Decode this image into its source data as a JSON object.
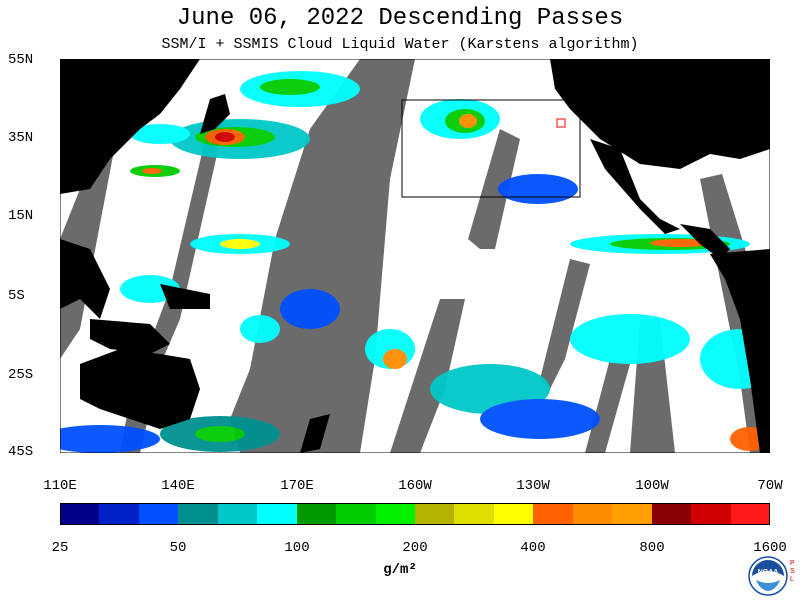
{
  "header": {
    "title": "June 06, 2022  Descending Passes",
    "subtitle": "SSM/I + SSMIS Cloud Liquid Water (Karstens algorithm)"
  },
  "map": {
    "lat_labels": [
      "55N",
      "35N",
      "15N",
      "5S",
      "25S",
      "45S"
    ],
    "lon_labels": [
      "110E",
      "140E",
      "170E",
      "160W",
      "130W",
      "100W",
      "70W"
    ],
    "colors": {
      "land": "#000000",
      "no_data": "#6b6b6b",
      "clear": "#ffffff"
    }
  },
  "colorbar": {
    "tick_labels": [
      "25",
      "50",
      "100",
      "200",
      "400",
      "800",
      "1600"
    ],
    "units": "g/m²",
    "colors": [
      "#00008b",
      "#0022c8",
      "#0050ff",
      "#009090",
      "#00c8c8",
      "#00ffff",
      "#009900",
      "#00cc00",
      "#00f000",
      "#b4b400",
      "#e0e000",
      "#ffff00",
      "#ff6000",
      "#ff8c00",
      "#ffa000",
      "#8b0000",
      "#d00000",
      "#ff1a1a"
    ]
  },
  "logo": {
    "text": "NOAA",
    "side_text": "P S L"
  }
}
